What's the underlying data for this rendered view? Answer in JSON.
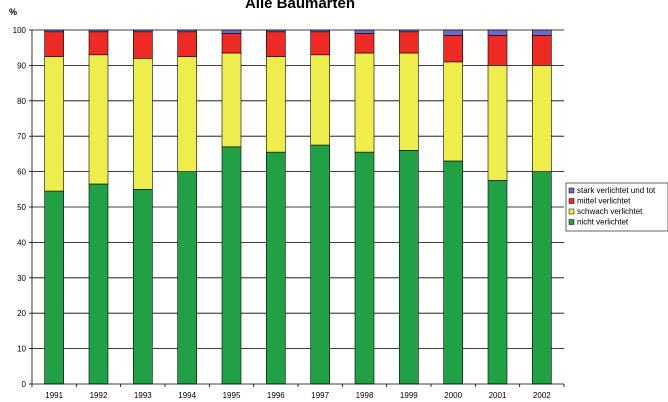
{
  "chart_data": {
    "type": "bar",
    "stacked": true,
    "title": "Alle Baumarten",
    "ylabel": "%",
    "xlabel": "",
    "ylim": [
      0,
      100
    ],
    "yticks": [
      0,
      10,
      20,
      30,
      40,
      50,
      60,
      70,
      80,
      90,
      100
    ],
    "grid": true,
    "legend_position": "right",
    "categories": [
      "1991",
      "1992",
      "1993",
      "1994",
      "1995",
      "1996",
      "1997",
      "1998",
      "1999",
      "2000",
      "2001",
      "2002"
    ],
    "series": [
      {
        "name": "nicht verlichtet",
        "color": "#22a046",
        "values": [
          54.5,
          56.5,
          55.0,
          60.0,
          67.0,
          65.5,
          67.5,
          65.5,
          66.0,
          63.0,
          57.5,
          60.0
        ]
      },
      {
        "name": "schwach verlichtet",
        "color": "#eded4d",
        "values": [
          38.0,
          36.5,
          37.0,
          32.5,
          26.5,
          27.0,
          25.5,
          28.0,
          27.5,
          28.0,
          32.5,
          30.0
        ]
      },
      {
        "name": "mittel verlichtet",
        "color": "#ee2a24",
        "values": [
          7.0,
          6.5,
          7.5,
          7.0,
          5.5,
          7.0,
          6.5,
          5.5,
          6.0,
          7.5,
          8.5,
          8.5
        ]
      },
      {
        "name": "stark verlichtet und tot",
        "color": "#6b6ac8",
        "values": [
          0.5,
          0.5,
          0.5,
          0.5,
          1.0,
          0.5,
          0.5,
          1.0,
          0.5,
          1.5,
          1.5,
          1.5
        ]
      }
    ]
  }
}
